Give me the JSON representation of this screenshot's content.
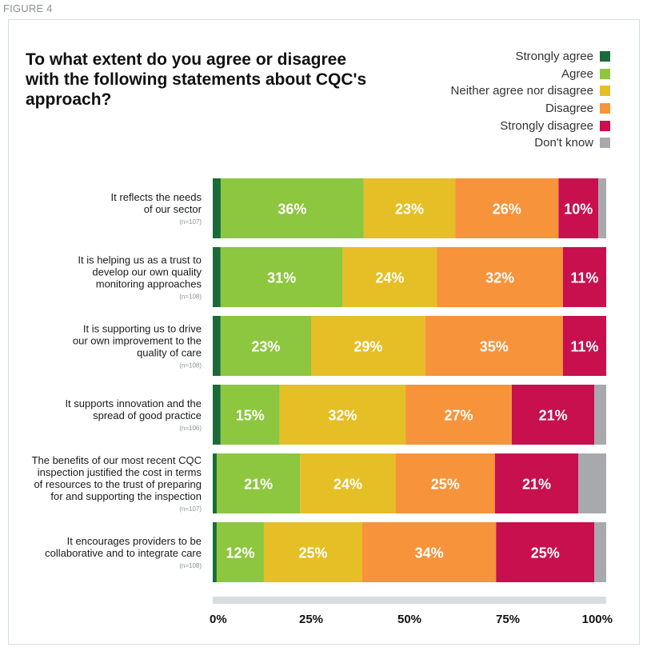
{
  "figure_label": "FIGURE 4",
  "chart_data": {
    "type": "bar",
    "orientation": "horizontal",
    "stacked": true,
    "title": "To what extent do you agree or disagree with the following statements about CQC's approach?",
    "legend_position": "top-right",
    "categories": [
      {
        "label": [
          "It reflects the needs",
          "of our sector"
        ],
        "n": "(n=107)"
      },
      {
        "label": [
          "It is helping us as a trust to",
          "develop our own quality",
          "monitoring approaches"
        ],
        "n": "(n=108)"
      },
      {
        "label": [
          "It is supporting us to drive",
          "our own improvement to the",
          "quality of care"
        ],
        "n": "(n=108)"
      },
      {
        "label": [
          "It supports innovation and the",
          "spread of good practice"
        ],
        "n": "(n=106)"
      },
      {
        "label": [
          "The benefits of our most recent CQC",
          "inspection justified the cost in terms",
          "of resources to the trust of preparing",
          "for and supporting the inspection"
        ],
        "n": "(n=107)"
      },
      {
        "label": [
          "It encourages providers to be",
          "collaborative and to integrate care"
        ],
        "n": "(n=108)"
      }
    ],
    "series": [
      {
        "name": "Strongly agree",
        "color": "#1b6b3a",
        "values": [
          2,
          2,
          2,
          2,
          1,
          1
        ],
        "labels": [
          "",
          "",
          "",
          "",
          "",
          ""
        ]
      },
      {
        "name": "Agree",
        "color": "#8dc63f",
        "values": [
          36,
          31,
          23,
          15,
          21,
          12
        ],
        "labels": [
          "36%",
          "31%",
          "23%",
          "15%",
          "21%",
          "12%"
        ]
      },
      {
        "name": "Neither agree nor disagree",
        "color": "#e5bf25",
        "values": [
          23,
          24,
          29,
          32,
          24,
          25
        ],
        "labels": [
          "23%",
          "24%",
          "29%",
          "32%",
          "24%",
          "25%"
        ]
      },
      {
        "name": "Disagree",
        "color": "#f7933a",
        "values": [
          26,
          32,
          35,
          27,
          25,
          34
        ],
        "labels": [
          "26%",
          "32%",
          "35%",
          "27%",
          "25%",
          "34%"
        ]
      },
      {
        "name": "Strongly disagree",
        "color": "#c8104e",
        "values": [
          10,
          11,
          11,
          21,
          21,
          25
        ],
        "labels": [
          "10%",
          "11%",
          "11%",
          "21%",
          "21%",
          "25%"
        ]
      },
      {
        "name": "Don't know",
        "color": "#a7a9ac",
        "values": [
          2,
          0,
          0,
          3,
          7,
          3
        ],
        "labels": [
          "",
          "",
          "",
          "",
          "",
          ""
        ]
      }
    ],
    "xlim": [
      0,
      100
    ],
    "x_ticks": [
      "0%",
      "25%",
      "50%",
      "75%",
      "100%"
    ],
    "track_color": "#d9dde0"
  }
}
